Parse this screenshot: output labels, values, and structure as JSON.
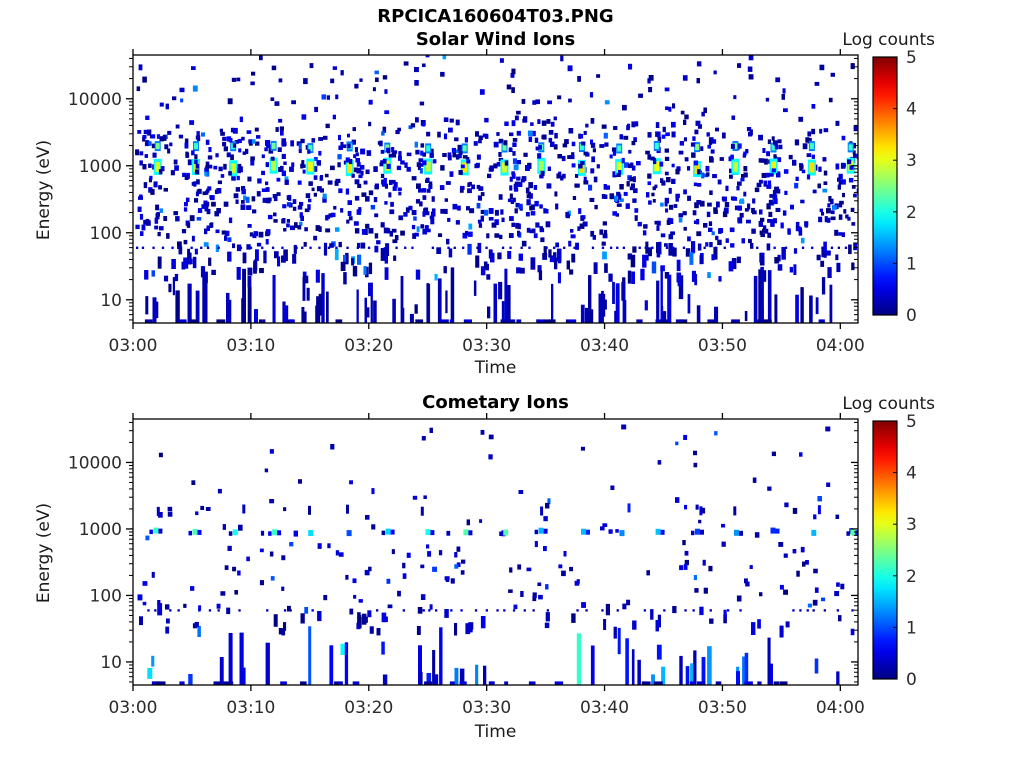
{
  "header": {
    "title": "RPCICA160604T03.PNG"
  },
  "chart_data": [
    {
      "id": "solar_wind",
      "type": "heatmap",
      "title": "Solar Wind Ions",
      "xlabel": "Time",
      "ylabel": "Energy (eV)",
      "x_tick_labels": [
        "03:00",
        "03:10",
        "03:20",
        "03:30",
        "03:40",
        "03:50",
        "04:00"
      ],
      "x_tick_minutes": [
        0,
        10,
        20,
        30,
        40,
        50,
        60
      ],
      "x_range_minutes": [
        0,
        61.5
      ],
      "y_scale": "log",
      "y_tick_values": [
        10,
        100,
        1000,
        10000
      ],
      "y_tick_labels": [
        "10",
        "100",
        "1000",
        "10000"
      ],
      "y_range_ev": [
        4.5,
        45000
      ],
      "grid": false,
      "colorbar": {
        "label": "Log counts",
        "tick_labels": [
          "0",
          "1",
          "2",
          "3",
          "4",
          "5"
        ],
        "range": [
          0,
          5
        ],
        "colormap": "jet"
      },
      "features": {
        "background_scatter": {
          "points": 1150,
          "log_counts_range": [
            0,
            1.5
          ],
          "energy_bands_logev_weight": [
            [
              3.65,
              4.65,
              0.1
            ],
            [
              2.55,
              3.65,
              0.38
            ],
            [
              1.95,
              2.55,
              0.32
            ],
            [
              1.55,
              1.95,
              0.14
            ],
            [
              1.3,
              1.55,
              0.06
            ]
          ]
        },
        "ion_beam": {
          "start_min": 2.0,
          "period_min": 3.27,
          "count": 19,
          "proton_energy_ev": 950,
          "proton_peak_log_counts": 3.0,
          "alpha_energy_ev": 1900,
          "alpha_peak_log_counts": 2.2
        },
        "dotted_trace_ev": 60,
        "low_energy_bars": {
          "count": 95,
          "energy_max_ev": 30,
          "log_counts_range": [
            0,
            0.5
          ]
        }
      }
    },
    {
      "id": "cometary",
      "type": "heatmap",
      "title": "Cometary Ions",
      "xlabel": "Time",
      "ylabel": "Energy (eV)",
      "x_tick_labels": [
        "03:00",
        "03:10",
        "03:20",
        "03:30",
        "03:40",
        "03:50",
        "04:00"
      ],
      "x_tick_minutes": [
        0,
        10,
        20,
        30,
        40,
        50,
        60
      ],
      "x_range_minutes": [
        0,
        61.5
      ],
      "y_scale": "log",
      "y_tick_values": [
        10,
        100,
        1000,
        10000
      ],
      "y_tick_labels": [
        "10",
        "100",
        "1000",
        "10000"
      ],
      "y_range_ev": [
        4.5,
        45000
      ],
      "grid": false,
      "colorbar": {
        "label": "Log counts",
        "tick_labels": [
          "0",
          "1",
          "2",
          "3",
          "4",
          "5"
        ],
        "range": [
          0,
          5
        ],
        "colormap": "jet"
      },
      "features": {
        "background_scatter": {
          "points": 235,
          "log_counts_range": [
            0,
            1.2
          ],
          "energy_bands_logev_weight": [
            [
              3.6,
              4.55,
              0.05
            ],
            [
              3.05,
              3.6,
              0.1
            ],
            [
              2.5,
              3.05,
              0.22
            ],
            [
              1.9,
              2.5,
              0.34
            ],
            [
              1.45,
              1.9,
              0.29
            ]
          ]
        },
        "pickup_band": {
          "energy_ev": 900,
          "start_min": 2.0,
          "period_min": 3.27,
          "count": 19,
          "log_counts_range": [
            0.8,
            2.3
          ]
        },
        "upper_dash_band_ev": 1900,
        "dotted_trace_ev": 60,
        "low_energy_bars": {
          "count": 75,
          "energy_max_ev": 35,
          "log_counts_range": [
            0.1,
            2.3
          ],
          "clustered_at_beam_times": true
        },
        "notable_points_min_ev": [
          [
            24.5,
            25000
          ],
          [
            2.2,
            14000
          ],
          [
            47.5,
            15000
          ],
          [
            14.0,
            5600
          ],
          [
            40.5,
            4500
          ],
          [
            58.8,
            5000
          ],
          [
            7.2,
            4000
          ]
        ]
      }
    }
  ]
}
